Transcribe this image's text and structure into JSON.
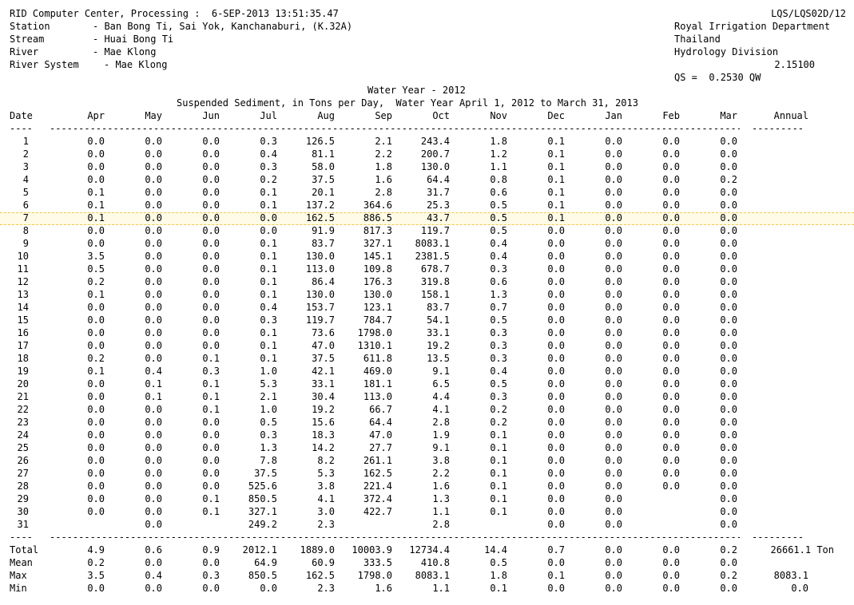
{
  "header": {
    "processing_line": "RID Computer Center, Processing :  6-SEP-2013 13:51:35.47",
    "station_label": "Station",
    "station_value": "- Ban Bong Ti, Sai Yok, Kanchanaburi, (K.32A)",
    "stream_label": "Stream",
    "stream_value": "- Huai Bong Ti",
    "river_label": "River",
    "river_value": "- Mae Klong",
    "river_system_label": "River System",
    "river_system_value": "- Mae Klong",
    "report_code": "LQS/LQS02D/12",
    "org": "Royal Irrigation Department",
    "country": "Thailand",
    "division": "Hydrology Division",
    "coefficient": "2.15100",
    "equation": "QS =  0.2530 QW"
  },
  "table": {
    "title": "Water Year - 2012",
    "subtitle": "Suspended Sediment, in Tons per Day,  Water Year April 1, 2012 to March 31, 2013",
    "date_header": "Date",
    "date_underline": "----",
    "annual_header": "Annual",
    "annual_underline": "---------",
    "months": [
      "Apr",
      "May",
      "Jun",
      "Jul",
      "Aug",
      "Sep",
      "Oct",
      "Nov",
      "Dec",
      "Jan",
      "Feb",
      "Mar"
    ],
    "highlighted_day": "7",
    "rows": [
      {
        "day": "1",
        "v": [
          "0.0",
          "0.0",
          "0.0",
          "0.3",
          "126.5",
          "2.1",
          "243.4",
          "1.8",
          "0.1",
          "0.0",
          "0.0",
          "0.0"
        ]
      },
      {
        "day": "2",
        "v": [
          "0.0",
          "0.0",
          "0.0",
          "0.4",
          "81.1",
          "2.2",
          "200.7",
          "1.2",
          "0.1",
          "0.0",
          "0.0",
          "0.0"
        ]
      },
      {
        "day": "3",
        "v": [
          "0.0",
          "0.0",
          "0.0",
          "0.3",
          "58.0",
          "1.8",
          "130.0",
          "1.1",
          "0.1",
          "0.0",
          "0.0",
          "0.0"
        ]
      },
      {
        "day": "4",
        "v": [
          "0.0",
          "0.0",
          "0.0",
          "0.2",
          "37.5",
          "1.6",
          "64.4",
          "0.8",
          "0.1",
          "0.0",
          "0.0",
          "0.2"
        ]
      },
      {
        "day": "5",
        "v": [
          "0.1",
          "0.0",
          "0.0",
          "0.1",
          "20.1",
          "2.8",
          "31.7",
          "0.6",
          "0.1",
          "0.0",
          "0.0",
          "0.0"
        ]
      },
      {
        "day": "6",
        "v": [
          "0.1",
          "0.0",
          "0.0",
          "0.1",
          "137.2",
          "364.6",
          "25.3",
          "0.5",
          "0.1",
          "0.0",
          "0.0",
          "0.0"
        ]
      },
      {
        "day": "7",
        "v": [
          "0.1",
          "0.0",
          "0.0",
          "0.0",
          "162.5",
          "886.5",
          "43.7",
          "0.5",
          "0.1",
          "0.0",
          "0.0",
          "0.0"
        ]
      },
      {
        "day": "8",
        "v": [
          "0.0",
          "0.0",
          "0.0",
          "0.0",
          "91.9",
          "817.3",
          "119.7",
          "0.5",
          "0.0",
          "0.0",
          "0.0",
          "0.0"
        ]
      },
      {
        "day": "9",
        "v": [
          "0.0",
          "0.0",
          "0.0",
          "0.1",
          "83.7",
          "327.1",
          "8083.1",
          "0.4",
          "0.0",
          "0.0",
          "0.0",
          "0.0"
        ]
      },
      {
        "day": "10",
        "v": [
          "3.5",
          "0.0",
          "0.0",
          "0.1",
          "130.0",
          "145.1",
          "2381.5",
          "0.4",
          "0.0",
          "0.0",
          "0.0",
          "0.0"
        ]
      },
      {
        "day": "11",
        "v": [
          "0.5",
          "0.0",
          "0.0",
          "0.1",
          "113.0",
          "109.8",
          "678.7",
          "0.3",
          "0.0",
          "0.0",
          "0.0",
          "0.0"
        ]
      },
      {
        "day": "12",
        "v": [
          "0.2",
          "0.0",
          "0.0",
          "0.1",
          "86.4",
          "176.3",
          "319.8",
          "0.6",
          "0.0",
          "0.0",
          "0.0",
          "0.0"
        ]
      },
      {
        "day": "13",
        "v": [
          "0.1",
          "0.0",
          "0.0",
          "0.1",
          "130.0",
          "130.0",
          "158.1",
          "1.3",
          "0.0",
          "0.0",
          "0.0",
          "0.0"
        ]
      },
      {
        "day": "14",
        "v": [
          "0.0",
          "0.0",
          "0.0",
          "0.4",
          "153.7",
          "123.1",
          "83.7",
          "0.7",
          "0.0",
          "0.0",
          "0.0",
          "0.0"
        ]
      },
      {
        "day": "15",
        "v": [
          "0.0",
          "0.0",
          "0.0",
          "0.3",
          "119.7",
          "784.7",
          "54.1",
          "0.5",
          "0.0",
          "0.0",
          "0.0",
          "0.0"
        ]
      },
      {
        "day": "16",
        "v": [
          "0.0",
          "0.0",
          "0.0",
          "0.1",
          "73.6",
          "1798.0",
          "33.1",
          "0.3",
          "0.0",
          "0.0",
          "0.0",
          "0.0"
        ]
      },
      {
        "day": "17",
        "v": [
          "0.0",
          "0.0",
          "0.0",
          "0.1",
          "47.0",
          "1310.1",
          "19.2",
          "0.3",
          "0.0",
          "0.0",
          "0.0",
          "0.0"
        ]
      },
      {
        "day": "18",
        "v": [
          "0.2",
          "0.0",
          "0.1",
          "0.1",
          "37.5",
          "611.8",
          "13.5",
          "0.3",
          "0.0",
          "0.0",
          "0.0",
          "0.0"
        ]
      },
      {
        "day": "19",
        "v": [
          "0.1",
          "0.4",
          "0.3",
          "1.0",
          "42.1",
          "469.0",
          "9.1",
          "0.4",
          "0.0",
          "0.0",
          "0.0",
          "0.0"
        ]
      },
      {
        "day": "20",
        "v": [
          "0.0",
          "0.1",
          "0.1",
          "5.3",
          "33.1",
          "181.1",
          "6.5",
          "0.5",
          "0.0",
          "0.0",
          "0.0",
          "0.0"
        ]
      },
      {
        "day": "21",
        "v": [
          "0.0",
          "0.1",
          "0.1",
          "2.1",
          "30.4",
          "113.0",
          "4.4",
          "0.3",
          "0.0",
          "0.0",
          "0.0",
          "0.0"
        ]
      },
      {
        "day": "22",
        "v": [
          "0.0",
          "0.0",
          "0.1",
          "1.0",
          "19.2",
          "66.7",
          "4.1",
          "0.2",
          "0.0",
          "0.0",
          "0.0",
          "0.0"
        ]
      },
      {
        "day": "23",
        "v": [
          "0.0",
          "0.0",
          "0.0",
          "0.5",
          "15.6",
          "64.4",
          "2.8",
          "0.2",
          "0.0",
          "0.0",
          "0.0",
          "0.0"
        ]
      },
      {
        "day": "24",
        "v": [
          "0.0",
          "0.0",
          "0.0",
          "0.3",
          "18.3",
          "47.0",
          "1.9",
          "0.1",
          "0.0",
          "0.0",
          "0.0",
          "0.0"
        ]
      },
      {
        "day": "25",
        "v": [
          "0.0",
          "0.0",
          "0.0",
          "1.3",
          "14.2",
          "27.7",
          "9.1",
          "0.1",
          "0.0",
          "0.0",
          "0.0",
          "0.0"
        ]
      },
      {
        "day": "26",
        "v": [
          "0.0",
          "0.0",
          "0.0",
          "7.8",
          "8.2",
          "261.1",
          "3.8",
          "0.1",
          "0.0",
          "0.0",
          "0.0",
          "0.0"
        ]
      },
      {
        "day": "27",
        "v": [
          "0.0",
          "0.0",
          "0.0",
          "37.5",
          "5.3",
          "162.5",
          "2.2",
          "0.1",
          "0.0",
          "0.0",
          "0.0",
          "0.0"
        ]
      },
      {
        "day": "28",
        "v": [
          "0.0",
          "0.0",
          "0.0",
          "525.6",
          "3.8",
          "221.4",
          "1.6",
          "0.1",
          "0.0",
          "0.0",
          "0.0",
          "0.0"
        ]
      },
      {
        "day": "29",
        "v": [
          "0.0",
          "0.0",
          "0.1",
          "850.5",
          "4.1",
          "372.4",
          "1.3",
          "0.1",
          "0.0",
          "0.0",
          "",
          "0.0"
        ]
      },
      {
        "day": "30",
        "v": [
          "0.0",
          "0.0",
          "0.1",
          "327.1",
          "3.0",
          "422.7",
          "1.1",
          "0.1",
          "0.0",
          "0.0",
          "",
          "0.0"
        ]
      },
      {
        "day": "31",
        "v": [
          "",
          "0.0",
          "",
          "249.2",
          "2.3",
          "",
          "2.8",
          "",
          "0.0",
          "0.0",
          "",
          "0.0"
        ]
      }
    ],
    "summary": [
      {
        "label": "Total",
        "v": [
          "4.9",
          "0.6",
          "0.9",
          "2012.1",
          "1889.0",
          "10003.9",
          "12734.4",
          "14.4",
          "0.7",
          "0.0",
          "0.0",
          "0.2"
        ],
        "annual": "26661.1 Ton"
      },
      {
        "label": "Mean",
        "v": [
          "0.2",
          "0.0",
          "0.0",
          "64.9",
          "60.9",
          "333.5",
          "410.8",
          "0.5",
          "0.0",
          "0.0",
          "0.0",
          "0.0"
        ],
        "annual": ""
      },
      {
        "label": "Max",
        "v": [
          "3.5",
          "0.4",
          "0.3",
          "850.5",
          "162.5",
          "1798.0",
          "8083.1",
          "1.8",
          "0.1",
          "0.0",
          "0.0",
          "0.2"
        ],
        "annual": "8083.1"
      },
      {
        "label": "Min",
        "v": [
          "0.0",
          "0.0",
          "0.0",
          "0.0",
          "2.3",
          "1.6",
          "1.1",
          "0.1",
          "0.0",
          "0.0",
          "0.0",
          "0.0"
        ],
        "annual": "0.0"
      }
    ]
  }
}
